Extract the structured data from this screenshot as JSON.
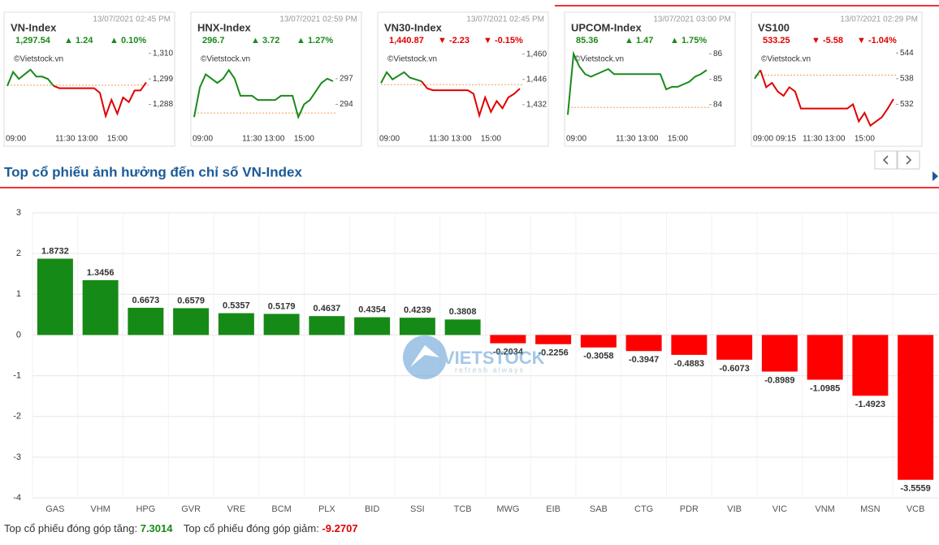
{
  "chart_data": [
    {
      "type": "line",
      "title": "VN-Index",
      "timestamp": "13/07/2021 02:45 PM",
      "source": "©Vietstock.vn",
      "stats": {
        "value": "1,297.54",
        "change": "▲ 1.24",
        "percent": "▲ 0.10%"
      },
      "stats_color": "#1a8a1a",
      "x": [
        "09:00",
        "09:15",
        "09:30",
        "09:45",
        "10:00",
        "10:15",
        "10:30",
        "10:45",
        "11:00",
        "11:15",
        "11:30",
        "13:00",
        "13:15",
        "13:30",
        "13:45",
        "14:00",
        "14:15",
        "14:30",
        "14:45",
        "15:00",
        "15:15",
        "15:30",
        "15:45",
        "16:00",
        "16:15"
      ],
      "values": [
        1296,
        1302,
        1299,
        1301,
        1303,
        1300,
        1300,
        1299,
        1296,
        1295,
        1295,
        1295,
        1295,
        1295,
        1295,
        1295,
        1293,
        1283,
        1290,
        1284,
        1291,
        1289,
        1294,
        1294,
        1297.5
      ],
      "reference": 1296.3,
      "ylim": [
        1277,
        1312
      ],
      "yticks": [
        {
          "value": 1288,
          "label": "1,288"
        },
        {
          "value": 1299,
          "label": "1,299"
        },
        {
          "value": 1310,
          "label": "1,310"
        }
      ],
      "xticks": [
        "09:00",
        "11:30",
        "13:00",
        "15:00"
      ],
      "up_color": "#1a8a1a",
      "down_color": "#e00000",
      "reference_color": "#f0a050"
    },
    {
      "type": "line",
      "title": "HNX-Index",
      "timestamp": "13/07/2021 02:59 PM",
      "source": "©Vietstock.vn",
      "stats": {
        "value": "296.7",
        "change": "▲ 3.72",
        "percent": "▲ 1.27%"
      },
      "stats_color": "#1a8a1a",
      "x": [
        "09:00",
        "09:15",
        "09:30",
        "09:45",
        "10:00",
        "10:15",
        "10:30",
        "10:45",
        "11:00",
        "11:15",
        "11:30",
        "13:00",
        "13:15",
        "13:30",
        "13:45",
        "14:00",
        "14:15",
        "14:30",
        "14:45",
        "15:00",
        "15:15",
        "15:30",
        "15:45",
        "16:00",
        "16:15"
      ],
      "values": [
        292.5,
        296,
        297.5,
        297,
        296.5,
        297,
        298,
        297,
        295,
        295,
        295,
        294.5,
        294.5,
        294.5,
        294.5,
        295,
        295,
        295,
        292.5,
        294,
        294.5,
        295.5,
        296.5,
        297,
        296.7
      ],
      "reference": 292.98,
      "ylim": [
        291,
        300.5
      ],
      "yticks": [
        294,
        297
      ],
      "xticks": [
        "09:00",
        "11:30",
        "13:00",
        "15:00"
      ],
      "up_color": "#1a8a1a",
      "down_color": "#e00000",
      "reference_color": "#f0a050"
    },
    {
      "type": "line",
      "title": "VN30-Index",
      "timestamp": "13/07/2021 02:45 PM",
      "source": "©Vietstock.vn",
      "stats": {
        "value": "1,440.87",
        "change": "▼ -2.23",
        "percent": "▼ -0.15%"
      },
      "stats_color": "#e00000",
      "x": [
        "09:00",
        "09:15",
        "09:30",
        "09:45",
        "10:00",
        "10:15",
        "10:30",
        "10:45",
        "11:00",
        "11:15",
        "11:30",
        "13:00",
        "13:15",
        "13:30",
        "13:45",
        "14:00",
        "14:15",
        "14:30",
        "14:45",
        "15:00",
        "15:15",
        "15:30",
        "15:45",
        "16:00",
        "16:15"
      ],
      "values": [
        1444,
        1450,
        1446,
        1448,
        1450,
        1447,
        1446,
        1445,
        1441,
        1440,
        1440,
        1440,
        1440,
        1440,
        1440,
        1440,
        1438,
        1426,
        1436,
        1428,
        1434,
        1430,
        1436,
        1438,
        1440.87
      ],
      "reference": 1443.1,
      "ylim": [
        1418,
        1463
      ],
      "yticks": [
        {
          "value": 1432,
          "label": "1,432"
        },
        {
          "value": 1446,
          "label": "1,446"
        },
        {
          "value": 1460,
          "label": "1,460"
        }
      ],
      "xticks": [
        "09:00",
        "11:30",
        "13:00",
        "15:00"
      ],
      "up_color": "#1a8a1a",
      "down_color": "#e00000",
      "reference_color": "#f0a050"
    },
    {
      "type": "line",
      "title": "UPCOM-Index",
      "timestamp": "13/07/2021 03:00 PM",
      "source": "©Vietstock.vn",
      "stats": {
        "value": "85.36",
        "change": "▲ 1.47",
        "percent": "▲ 1.75%"
      },
      "stats_color": "#1a8a1a",
      "x": [
        "09:00",
        "09:15",
        "09:30",
        "09:45",
        "10:00",
        "10:15",
        "10:30",
        "10:45",
        "11:00",
        "11:15",
        "11:30",
        "13:00",
        "13:15",
        "13:30",
        "13:45",
        "14:00",
        "14:15",
        "14:30",
        "14:45",
        "15:00",
        "15:15",
        "15:30",
        "15:45",
        "16:00",
        "16:15"
      ],
      "values": [
        83.6,
        86,
        85.5,
        85.2,
        85.1,
        85.2,
        85.3,
        85.4,
        85.2,
        85.2,
        85.2,
        85.2,
        85.2,
        85.2,
        85.2,
        85.2,
        85.2,
        84.6,
        84.7,
        84.7,
        84.8,
        84.9,
        85.1,
        85.2,
        85.36
      ],
      "reference": 83.89,
      "ylim": [
        83,
        86.2
      ],
      "yticks": [
        84,
        85,
        86
      ],
      "xticks": [
        "09:00",
        "11:30",
        "13:00",
        "15:00"
      ],
      "up_color": "#1a8a1a",
      "down_color": "#e00000",
      "reference_color": "#f0a050"
    },
    {
      "type": "line",
      "title": "VS100",
      "timestamp": "13/07/2021 02:29 PM",
      "source": "©Vietstock.vn",
      "stats": {
        "value": "533.25",
        "change": "▼ -5.58",
        "percent": "▼ -1.04%"
      },
      "stats_color": "#e00000",
      "x": [
        "09:00",
        "09:15",
        "09:30",
        "09:45",
        "10:00",
        "10:15",
        "10:30",
        "10:45",
        "11:00",
        "11:15",
        "11:30",
        "13:00",
        "13:15",
        "13:30",
        "13:45",
        "14:00",
        "14:15",
        "14:30",
        "14:45",
        "15:00",
        "15:15",
        "15:30",
        "15:45",
        "16:00",
        "16:15"
      ],
      "values": [
        538,
        540,
        536,
        537,
        535,
        534,
        536,
        535,
        531,
        531,
        531,
        531,
        531,
        531,
        531,
        531,
        531,
        532,
        528,
        530,
        527,
        528,
        529,
        531,
        533.25
      ],
      "reference": 538.83,
      "ylim": [
        526,
        545
      ],
      "yticks": [
        532,
        538,
        544
      ],
      "xticks": [
        "09:00",
        "09:15",
        "11:30",
        "13:00",
        "15:00"
      ],
      "up_color": "#1a8a1a",
      "down_color": "#e00000",
      "reference_color": "#f0a050"
    },
    {
      "type": "bar",
      "title": "Top cổ phiếu ảnh hưởng đến chỉ số VN-Index",
      "categories": [
        "GAS",
        "VHM",
        "HPG",
        "GVR",
        "VRE",
        "BCM",
        "PLX",
        "BID",
        "SSI",
        "TCB",
        "MWG",
        "EIB",
        "SAB",
        "CTG",
        "PDR",
        "VIB",
        "VIC",
        "VNM",
        "MSN",
        "VCB"
      ],
      "values": [
        1.8732,
        1.3456,
        0.6673,
        0.6579,
        0.5357,
        0.5179,
        0.4637,
        0.4354,
        0.4239,
        0.3808,
        -0.2034,
        -0.2256,
        -0.3058,
        -0.3947,
        -0.4883,
        -0.6073,
        -0.8989,
        -1.0985,
        -1.4923,
        -3.5559
      ],
      "ylim": [
        -4,
        3
      ],
      "yticks": [
        -4,
        -3,
        -2,
        -1,
        0,
        1,
        2,
        3
      ],
      "grid": true,
      "positive_color": "#168a16",
      "negative_color": "#ff0000"
    }
  ],
  "watermark": {
    "brand": "VIETSTOCK",
    "tagline": "refresh always"
  },
  "summary": {
    "gain_label": "Top cổ phiếu đóng góp tăng:",
    "gain": 7.3014,
    "loss_label": "Top cổ phiếu đóng góp giảm:",
    "loss": -9.2707
  }
}
